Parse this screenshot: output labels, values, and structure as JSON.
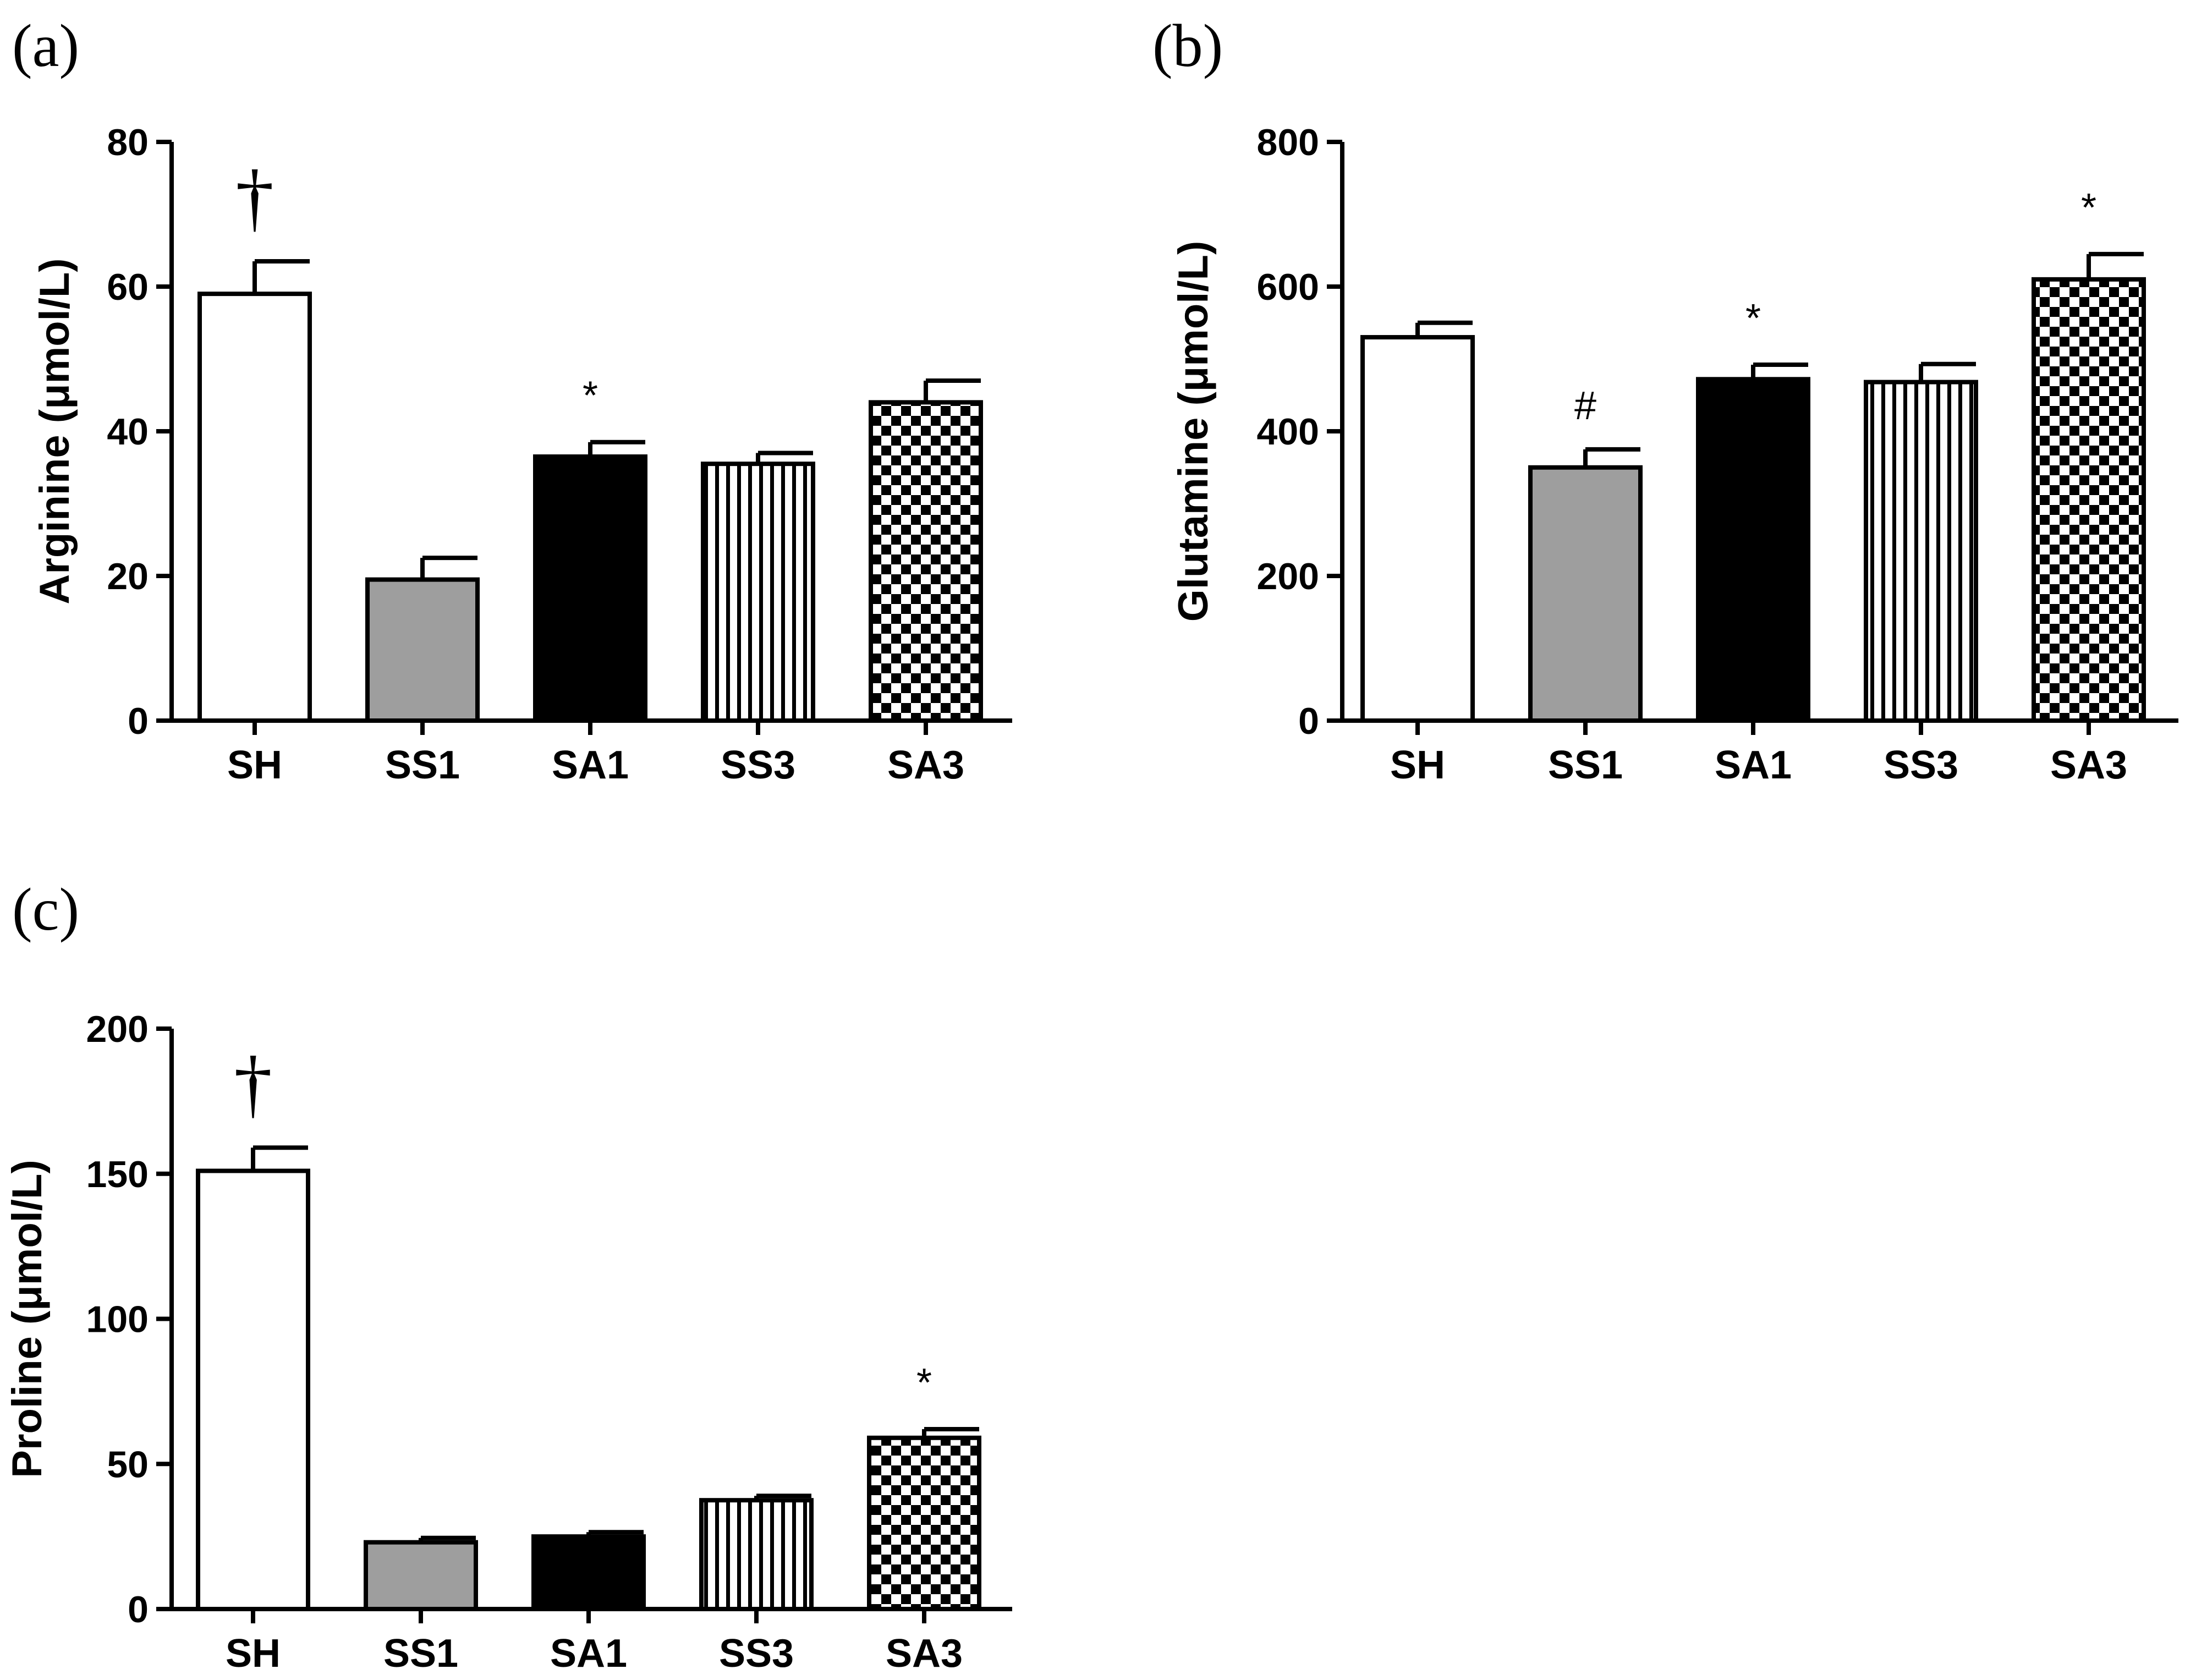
{
  "chart_data": [
    {
      "type": "bar",
      "panel_label": "(a)",
      "ylabel": "Arginine (μmol/L)",
      "categories": [
        "SH",
        "SS1",
        "SA1",
        "SS3",
        "SA3"
      ],
      "values": [
        59,
        19.5,
        36.5,
        35.5,
        44
      ],
      "errors": [
        4.5,
        3,
        2,
        1.5,
        3
      ],
      "fills": [
        "white",
        "gray",
        "black",
        "vstripes",
        "checker"
      ],
      "annotations": [
        "†",
        "",
        "*",
        "",
        ""
      ],
      "ylim": [
        0,
        80
      ],
      "yticks": [
        0,
        20,
        40,
        60,
        80
      ]
    },
    {
      "type": "bar",
      "panel_label": "(b)",
      "ylabel": "Glutamine (μmol/L)",
      "categories": [
        "SH",
        "SS1",
        "SA1",
        "SS3",
        "SA3"
      ],
      "values": [
        530,
        350,
        472,
        468,
        610
      ],
      "errors": [
        20,
        25,
        20,
        25,
        35
      ],
      "fills": [
        "white",
        "gray",
        "black",
        "vstripes",
        "checker"
      ],
      "annotations": [
        "",
        "#",
        "*",
        "",
        "*"
      ],
      "ylim": [
        0,
        800
      ],
      "yticks": [
        0,
        200,
        400,
        600,
        800
      ]
    },
    {
      "type": "bar",
      "panel_label": "(c)",
      "ylabel": "Proline (μmol/L)",
      "categories": [
        "SH",
        "SS1",
        "SA1",
        "SS3",
        "SA3"
      ],
      "values": [
        151,
        23,
        25,
        37.5,
        59
      ],
      "errors": [
        8,
        1.5,
        1.5,
        1.5,
        3
      ],
      "fills": [
        "white",
        "gray",
        "black",
        "vstripes",
        "checker"
      ],
      "annotations": [
        "†",
        "",
        "",
        "",
        "*"
      ],
      "ylim": [
        0,
        200
      ],
      "yticks": [
        0,
        50,
        100,
        150,
        200
      ]
    }
  ],
  "colors": {
    "gray_fill": "#9e9e9e",
    "black_fill": "#000000",
    "white_fill": "#ffffff",
    "line": "#000000"
  }
}
